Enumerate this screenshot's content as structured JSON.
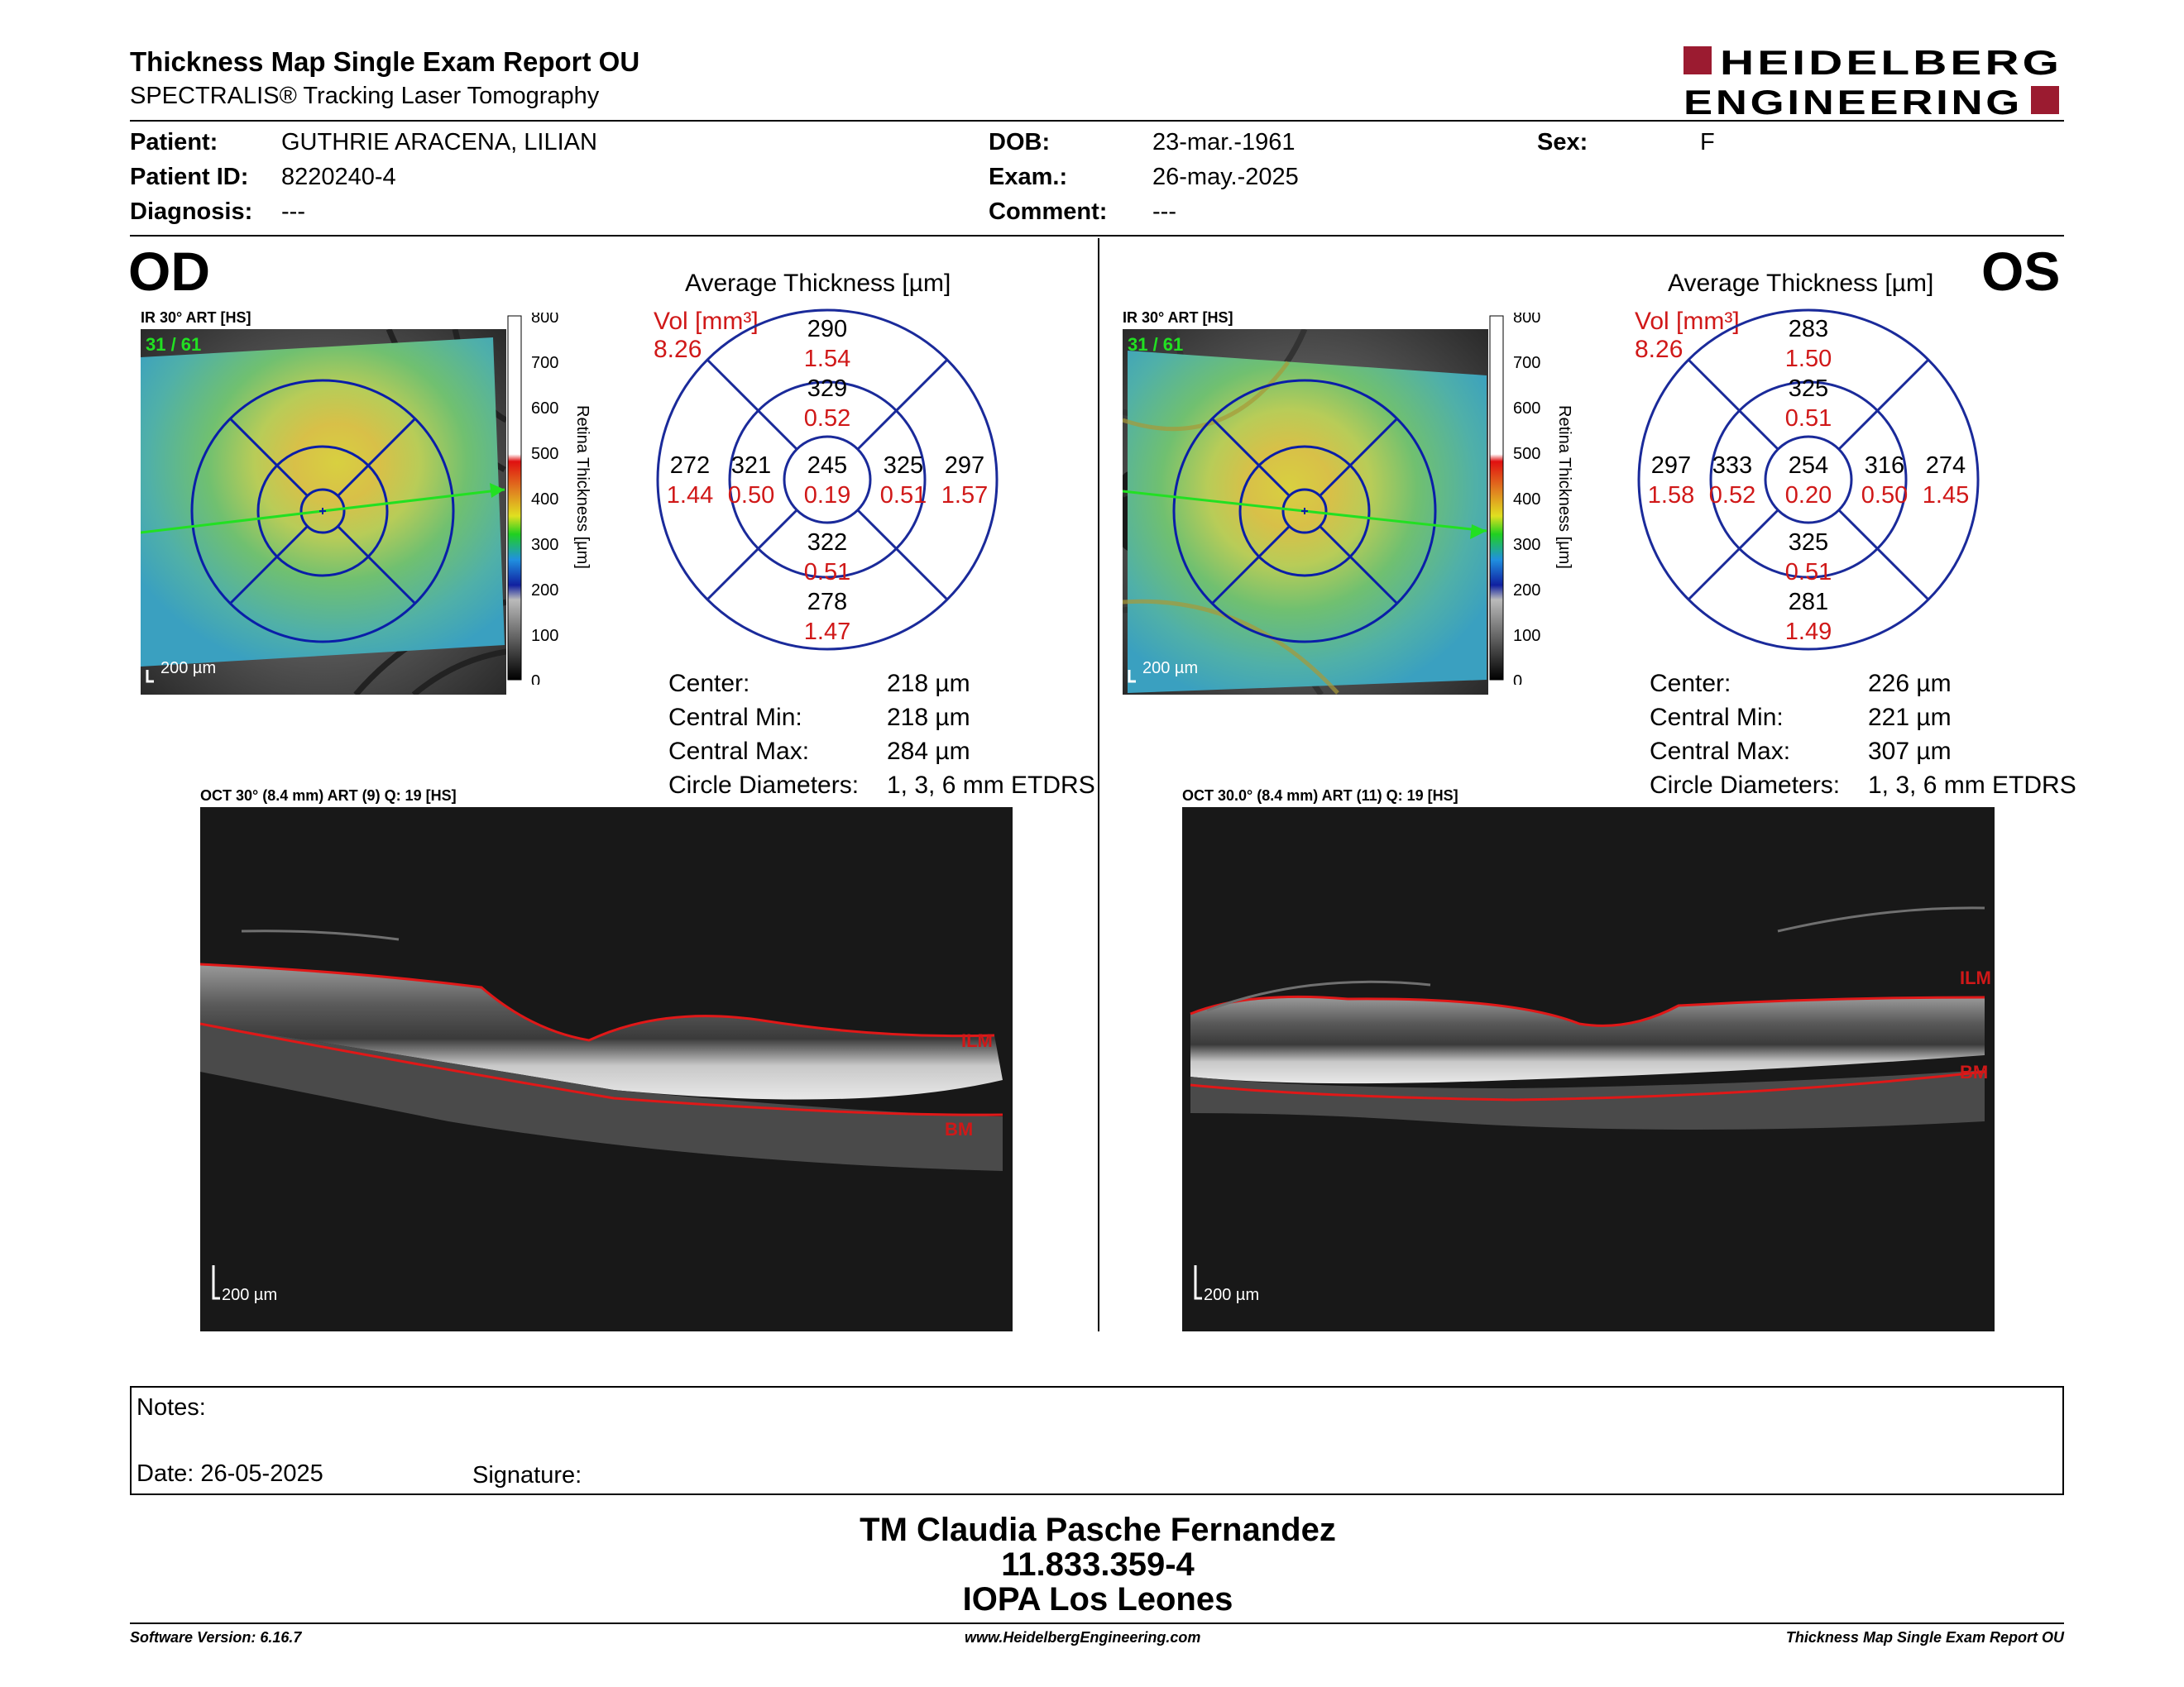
{
  "report": {
    "title": "Thickness Map Single Exam Report OU",
    "subtitle": "SPECTRALIS® Tracking Laser Tomography",
    "logo_line1": "HEIDELBERG",
    "logo_line2": "ENGINEERING"
  },
  "patient": {
    "patient_label": "Patient:",
    "patient": "GUTHRIE ARACENA, LILIAN",
    "id_label": "Patient ID:",
    "id": "8220240-4",
    "diagnosis_label": "Diagnosis:",
    "diagnosis": "---",
    "dob_label": "DOB:",
    "dob": "23-mar.-1961",
    "exam_label": "Exam.:",
    "exam": "26-may.-2025",
    "comment_label": "Comment:",
    "comment": "---",
    "sex_label": "Sex:",
    "sex": "F"
  },
  "colorbar": {
    "label": "Retina Thickness [µm]",
    "ticks": [
      "800",
      "700",
      "600",
      "500",
      "400",
      "300",
      "200",
      "100",
      "0"
    ]
  },
  "od": {
    "eye": "OD",
    "ir_title": "IR 30° ART [HS]",
    "ir_counter": "31 / 61",
    "ir_scale": "200 µm",
    "avg_title": "Average Thickness [µm]",
    "vol_label": "Vol [mm³]",
    "vol": "8.26",
    "etdrs": {
      "center_t": "245",
      "center_v": "0.19",
      "inner_sup_t": "329",
      "inner_sup_v": "0.52",
      "inner_inf_t": "322",
      "inner_inf_v": "0.51",
      "inner_left_t": "321",
      "inner_left_v": "0.50",
      "inner_right_t": "325",
      "inner_right_v": "0.51",
      "outer_sup_t": "290",
      "outer_sup_v": "1.54",
      "outer_inf_t": "278",
      "outer_inf_v": "1.47",
      "outer_left_t": "272",
      "outer_left_v": "1.44",
      "outer_right_t": "297",
      "outer_right_v": "1.57"
    },
    "stats": {
      "center_label": "Center:",
      "center": "218 µm",
      "min_label": "Central Min:",
      "min": "218 µm",
      "max_label": "Central Max:",
      "max": "284 µm",
      "diam_label": "Circle Diameters:",
      "diam": "1, 3, 6 mm ETDRS"
    },
    "oct_title": "OCT 30° (8.4 mm) ART (9) Q: 19 [HS]",
    "oct_scale": "200 µm",
    "ilm": "ILM",
    "bm": "BM"
  },
  "os": {
    "eye": "OS",
    "ir_title": "IR 30° ART [HS]",
    "ir_counter": "31 / 61",
    "ir_scale": "200 µm",
    "avg_title": "Average Thickness [µm]",
    "vol_label": "Vol [mm³]",
    "vol": "8.26",
    "etdrs": {
      "center_t": "254",
      "center_v": "0.20",
      "inner_sup_t": "325",
      "inner_sup_v": "0.51",
      "inner_inf_t": "325",
      "inner_inf_v": "0.51",
      "inner_left_t": "333",
      "inner_left_v": "0.52",
      "inner_right_t": "316",
      "inner_right_v": "0.50",
      "outer_sup_t": "283",
      "outer_sup_v": "1.50",
      "outer_inf_t": "281",
      "outer_inf_v": "1.49",
      "outer_left_t": "297",
      "outer_left_v": "1.58",
      "outer_right_t": "274",
      "outer_right_v": "1.45"
    },
    "stats": {
      "center_label": "Center:",
      "center": "226 µm",
      "min_label": "Central Min:",
      "min": "221 µm",
      "max_label": "Central Max:",
      "max": "307 µm",
      "diam_label": "Circle Diameters:",
      "diam": "1, 3, 6 mm ETDRS"
    },
    "oct_title": "OCT 30.0° (8.4 mm) ART (11) Q: 19 [HS]",
    "oct_scale": "200 µm",
    "ilm": "ILM",
    "bm": "BM"
  },
  "notes": {
    "notes_label": "Notes:",
    "date": "Date: 26-05-2025",
    "signature_label": "Signature:"
  },
  "signature": {
    "name": "TM Claudia Pasche Fernandez",
    "rut": "11.833.359-4",
    "institution": "IOPA Los Leones"
  },
  "footer": {
    "software": "Software Version: 6.16.7",
    "website": "www.HeidelbergEngineering.com",
    "report": "Thickness Map Single Exam Report OU"
  },
  "colors": {
    "accent_red": "#9b1b30",
    "grid_blue": "#1a2a9a",
    "value_red": "#d01818"
  }
}
